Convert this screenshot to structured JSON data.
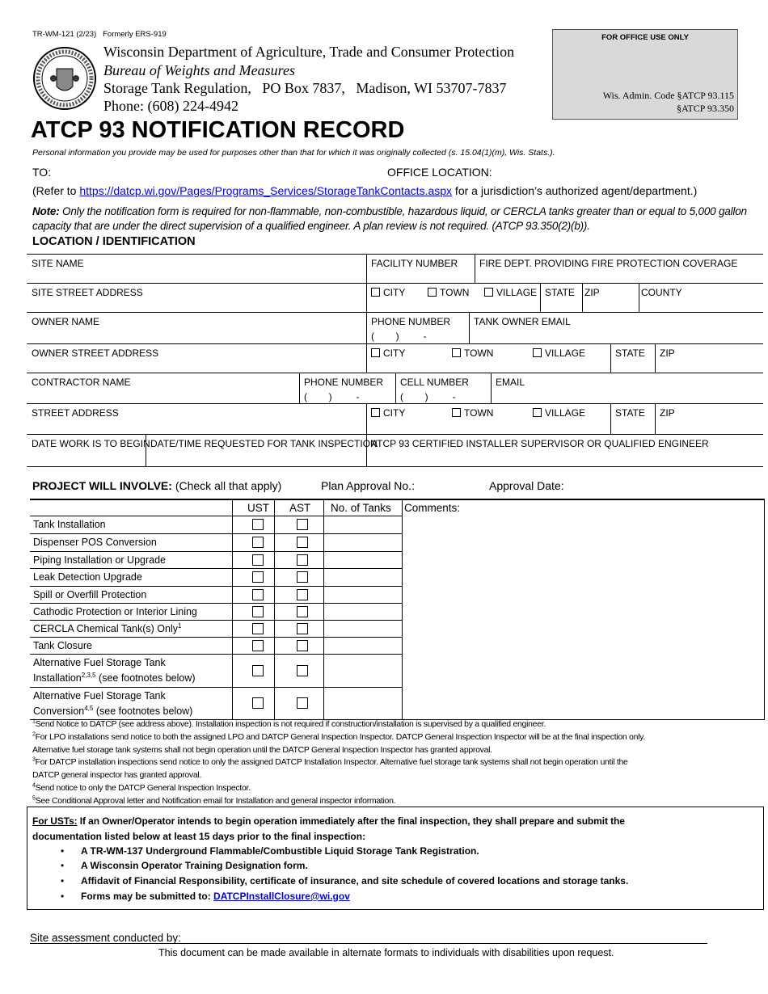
{
  "form_id": "TR-WM-121 (2/23)",
  "formerly": "Formerly ERS-919",
  "agency": {
    "name": "Wisconsin Department of Agriculture, Trade and Consumer Protection",
    "bureau": "Bureau of Weights and Measures",
    "address": "Storage Tank Regulation,   PO Box 7837,   Madison, WI 53707-7837",
    "phone": "Phone: (608) 224-4942"
  },
  "office_use": {
    "title": "FOR OFFICE USE ONLY",
    "code1": "Wis. Admin. Code §ATCP 93.115",
    "code2": "§ATCP 93.350"
  },
  "title": "ATCP 93 NOTIFICATION RECORD",
  "privacy": "Personal information you provide may be used for purposes other than that for which it was originally collected (s. 15.04(1)(m), Wis. Stats.).",
  "to_label": "TO:",
  "office_location_label": "OFFICE LOCATION:",
  "refer": {
    "pre": "(Refer to ",
    "link": "https://datcp.wi.gov/Pages/Programs_Services/StorageTankContacts.aspx",
    "post": " for a jurisdiction’s authorized agent/department.)"
  },
  "note": {
    "label": "Note:",
    "text": " Only the notification form is required for non-flammable, non-combustible, hazardous liquid, or CERCLA tanks greater than or equal to 5,000 gallon capacity that are under the direct supervision of a qualified engineer. A plan review is not required. (ATCP 93.350(2)(b))."
  },
  "section_location": "LOCATION / IDENTIFICATION",
  "loc": {
    "site_name": "SITE NAME",
    "facility_number": "FACILITY NUMBER",
    "fire_dept": "FIRE DEPT. PROVIDING FIRE PROTECTION COVERAGE",
    "site_street": "SITE STREET ADDRESS",
    "city": "CITY",
    "town": "TOWN",
    "village": "VILLAGE",
    "state": "STATE",
    "zip": "ZIP",
    "county": "COUNTY",
    "owner_name": "OWNER NAME",
    "phone_number": "PHONE NUMBER",
    "phone_mask": "(        )         -",
    "tank_owner_email": "TANK OWNER EMAIL",
    "owner_street": "OWNER STREET ADDRESS",
    "contractor_name": "CONTRACTOR NAME",
    "cell_number": "CELL NUMBER",
    "email": "EMAIL",
    "street_address": "STREET ADDRESS",
    "date_work": "DATE WORK IS TO BEGIN",
    "date_time_requested": "DATE/TIME REQUESTED FOR TANK INSPECTION",
    "installer": "ATCP 93 CERTIFIED INSTALLER SUPERVISOR OR QUALIFIED ENGINEER"
  },
  "project": {
    "heading": "PROJECT WILL INVOLVE:",
    "check_all": "(Check all that apply)",
    "plan_approval": "Plan Approval No.:",
    "approval_date": "Approval Date:",
    "col_ust": "UST",
    "col_ast": "AST",
    "col_tanks": "No. of Tanks",
    "col_comments": "Comments:",
    "rows": [
      {
        "label": "Tank Installation",
        "sup": "",
        "after": "",
        "line2": ""
      },
      {
        "label": "Dispenser POS Conversion",
        "sup": "",
        "after": "",
        "line2": ""
      },
      {
        "label": "Piping Installation or Upgrade",
        "sup": "",
        "after": "",
        "line2": ""
      },
      {
        "label": "Leak Detection Upgrade",
        "sup": "",
        "after": "",
        "line2": ""
      },
      {
        "label": "Spill or Overfill Protection",
        "sup": "",
        "after": "",
        "line2": ""
      },
      {
        "label": "Cathodic Protection or Interior Lining",
        "sup": "",
        "after": "",
        "line2": ""
      },
      {
        "label": "CERCLA Chemical Tank(s) Only",
        "sup": "1",
        "after": "",
        "line2": ""
      },
      {
        "label": "Tank Closure",
        "sup": "",
        "after": "",
        "line2": ""
      },
      {
        "label": "Alternative Fuel Storage Tank",
        "line2": "Installation",
        "sup": "2,3,5",
        "after": " (see footnotes below)"
      },
      {
        "label": "Alternative Fuel Storage Tank",
        "line2": "Conversion",
        "sup": "4,5",
        "after": " (see footnotes below)"
      }
    ]
  },
  "footnotes": [
    {
      "n": "1",
      "t": "Send Notice to DATCP (see address above). Installation inspection is not required if construction/installation is supervised by a qualified engineer."
    },
    {
      "n": "2",
      "t": "For LPO installations send notice to both the assigned LPO and DATCP General Inspection Inspector. DATCP General Inspection Inspector will be at the final inspection only."
    },
    {
      "n": "",
      "t": " Alternative fuel storage tank systems shall not begin operation until the DATCP General Inspection Inspector has granted approval."
    },
    {
      "n": "3",
      "t": "For DATCP installation inspections send notice to only the assigned DATCP Installation Inspector. Alternative fuel storage tank systems shall not begin operation until the"
    },
    {
      "n": "",
      "t": " DATCP general inspector has granted approval."
    },
    {
      "n": "4",
      "t": "Send notice to only the DATCP General Inspection Inspector."
    },
    {
      "n": "5",
      "t": "See Conditional Approval letter and Notification email for Installation and general inspector information."
    }
  ],
  "usts": {
    "label": "For USTs:",
    "text": " If an Owner/Operator intends to begin operation immediately after the final inspection, they shall prepare and submit the",
    "text2": "documentation listed below at least 15 days prior to the final inspection:",
    "bullets": [
      "A TR-WM-137 Underground Flammable/Combustible Liquid Storage Tank Registration.",
      "A Wisconsin Operator Training Designation form.",
      "Affidavit of Financial Responsibility, certificate of insurance, and site schedule of covered locations and storage tanks."
    ],
    "forms_label": "Forms may be submitted to: ",
    "forms_email": "DATCPInstallClosure@wi.gov"
  },
  "site_assessment": "Site assessment conducted by:",
  "accessibility": "This document can be made available in alternate formats to individuals with disabilities upon request."
}
